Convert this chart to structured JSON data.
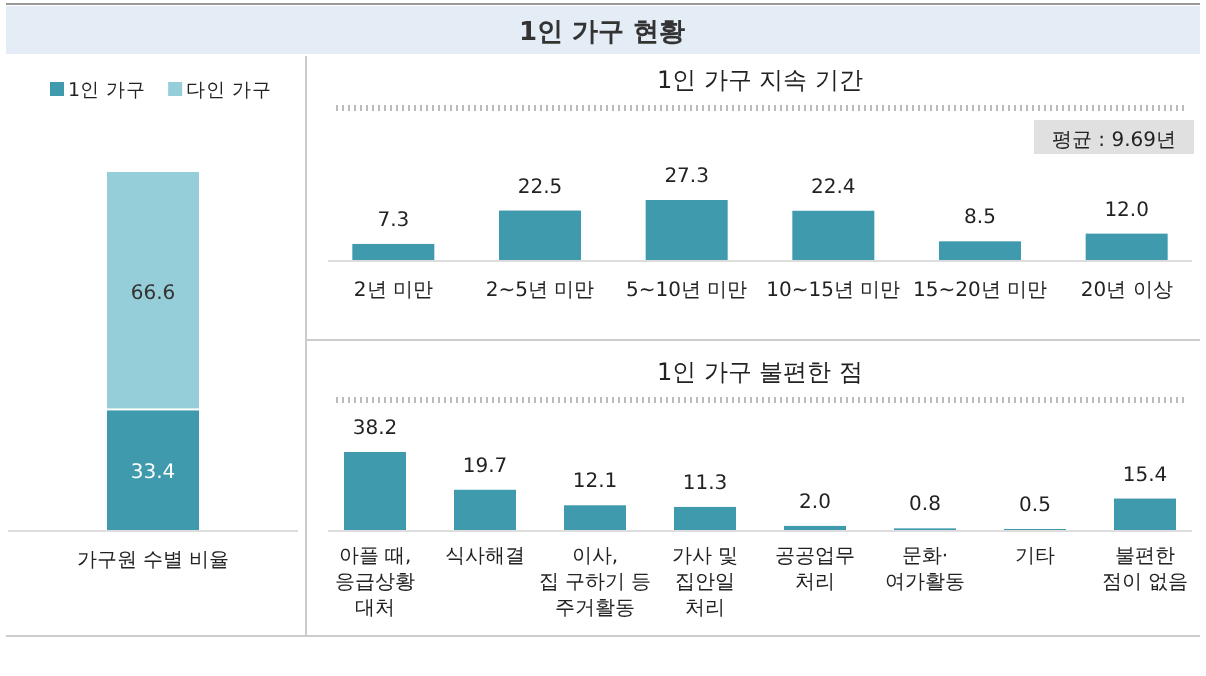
{
  "chart_data": [
    {
      "type": "other",
      "title": "1인 가구 현황"
    },
    {
      "type": "bar",
      "stacked": true,
      "categories": [
        "가구원 수별 비율"
      ],
      "legend": "top",
      "data_labels": true,
      "series": [
        {
          "name": "1인 가구",
          "color": "#3f9aad",
          "values": [
            33.4
          ]
        },
        {
          "name": "다인 가구",
          "color": "#95ced8",
          "values": [
            66.6
          ]
        }
      ]
    },
    {
      "type": "bar",
      "title": "1인 가구 지속 기간",
      "categories": [
        "2년 미만",
        "2~5년 미만",
        "5~10년 미만",
        "10~15년 미만",
        "15~20년 미만",
        "20년 이상"
      ],
      "values": [
        7.3,
        22.5,
        27.3,
        22.4,
        8.5,
        12.0
      ],
      "value_labels": [
        "7.3",
        "22.5",
        "27.3",
        "22.4",
        "8.5",
        "12.0"
      ],
      "color": "#3f9aad",
      "annotations": [
        "평균 : 9.69년"
      ]
    },
    {
      "type": "bar",
      "title": "1인 가구 불편한 점",
      "categories": [
        "아플 때,\n응급상황\n대처",
        "식사해결",
        "이사,\n집 구하기 등\n주거활동",
        "가사 및\n집안일\n처리",
        "공공업무\n처리",
        "문화·\n여가활동",
        "기타",
        "불편한\n점이 없음"
      ],
      "values": [
        38.2,
        19.7,
        12.1,
        11.3,
        2.0,
        0.8,
        0.5,
        15.4
      ],
      "value_labels": [
        "38.2",
        "19.7",
        "12.1",
        "11.3",
        "2.0",
        "0.8",
        "0.5",
        "15.4"
      ],
      "color": "#3f9aad"
    }
  ]
}
